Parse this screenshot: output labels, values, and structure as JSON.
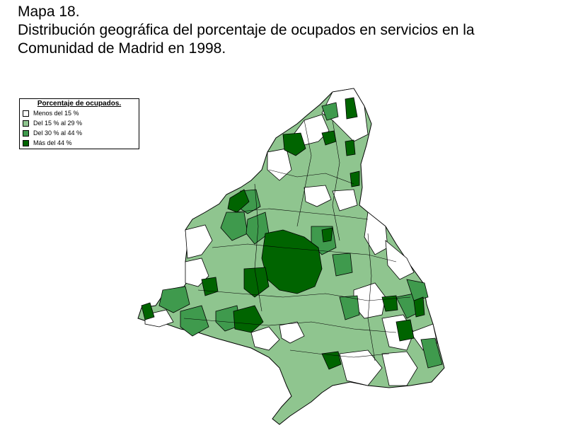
{
  "title": {
    "line1": "Mapa 18.",
    "line2": "Distribución geográfica del porcentaje de ocupados en servicios en la",
    "line3": "Comunidad de Madrid en 1998."
  },
  "legend": {
    "title": "Porcentaje de ocupados.",
    "items": [
      {
        "label": "Menos del 15 %",
        "color": "#ffffff"
      },
      {
        "label": "Del 15 % al 29 %",
        "color": "#8fc58f"
      },
      {
        "label": "Del 30 % al 44 %",
        "color": "#3f9a4d"
      },
      {
        "label": "Más del 44 %",
        "color": "#006400"
      }
    ]
  },
  "map": {
    "region": "Comunidad de Madrid",
    "border_color": "#000000",
    "background_fill": "#eef6f6"
  }
}
